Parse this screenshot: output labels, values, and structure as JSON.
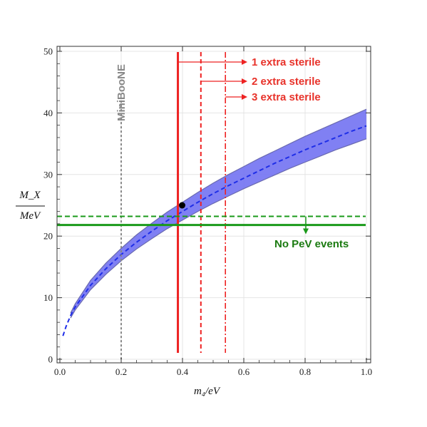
{
  "chart_data": {
    "type": "line",
    "title": "",
    "xlabel": "m₄/eV",
    "ylabel_numerator": "M_X",
    "ylabel_denominator": "MeV",
    "xlim": [
      0,
      1.0
    ],
    "ylim": [
      0,
      50
    ],
    "x_ticks": [
      "0.0",
      "0.2",
      "0.4",
      "0.6",
      "0.8",
      "1.0"
    ],
    "y_ticks": [
      "0",
      "10",
      "20",
      "30",
      "40",
      "50"
    ],
    "grid": true,
    "series": [
      {
        "kind": "band-center-dashed-blue",
        "x": [
          0.01,
          0.02,
          0.035,
          0.05,
          0.1,
          0.15,
          0.2,
          0.25,
          0.3,
          0.35,
          0.4,
          0.45,
          0.5,
          0.55,
          0.6,
          0.65,
          0.7,
          0.75,
          0.8,
          0.85,
          0.9,
          0.95,
          1.0
        ],
        "y": [
          3.8,
          5.3,
          7.1,
          8.5,
          12.0,
          14.7,
          17.0,
          19.0,
          20.8,
          22.5,
          24.0,
          25.5,
          26.9,
          28.2,
          29.4,
          30.6,
          31.8,
          32.9,
          34.0,
          35.0,
          36.0,
          37.0,
          37.9
        ]
      },
      {
        "kind": "band-lower",
        "x": [
          0.035,
          0.05,
          0.1,
          0.15,
          0.2,
          0.25,
          0.3,
          0.35,
          0.4,
          0.45,
          0.5,
          0.55,
          0.6,
          0.65,
          0.7,
          0.75,
          0.8,
          0.85,
          0.9,
          0.95,
          1.0
        ],
        "y": [
          6.7,
          8.0,
          11.3,
          13.8,
          16.0,
          17.9,
          19.6,
          21.2,
          22.6,
          24.0,
          25.3,
          26.5,
          27.7,
          28.8,
          29.9,
          31.0,
          32.0,
          33.0,
          34.0,
          34.9,
          35.8
        ]
      },
      {
        "kind": "band-upper",
        "x": [
          0.035,
          0.05,
          0.1,
          0.15,
          0.2,
          0.25,
          0.3,
          0.35,
          0.4,
          0.45,
          0.5,
          0.55,
          0.6,
          0.65,
          0.7,
          0.75,
          0.8,
          0.85,
          0.9,
          0.95,
          1.0
        ],
        "y": [
          7.5,
          9.0,
          12.8,
          15.6,
          18.0,
          20.2,
          22.1,
          23.9,
          25.5,
          27.1,
          28.6,
          30.0,
          31.3,
          32.6,
          33.8,
          35.0,
          36.2,
          37.3,
          38.4,
          39.5,
          40.6
        ]
      }
    ],
    "vertical_lines": [
      {
        "x": 0.2,
        "style": "dotted-gray",
        "label": "MiniBooNE"
      },
      {
        "x": 0.385,
        "style": "solid-red",
        "label": "1 extra sterile"
      },
      {
        "x": 0.46,
        "style": "dashed-red",
        "label": "2 extra sterile"
      },
      {
        "x": 0.54,
        "style": "dashdot-red",
        "label": "3 extra sterile"
      }
    ],
    "horizontal_lines": [
      {
        "y": 23.2,
        "style": "dashed-green"
      },
      {
        "y": 21.8,
        "style": "solid-green",
        "label": "No PeV events"
      }
    ],
    "point": {
      "x": 0.4,
      "y": 25.0
    },
    "colors": {
      "band_fill": "#7272f2",
      "band_edge": "#6a6ab0",
      "blue_dash": "#1f2ee8",
      "red": "#ee2222",
      "green": "#1a9a1a",
      "gray": "#888888",
      "label_red": "#e8322a",
      "label_green": "#1a7a10"
    }
  }
}
